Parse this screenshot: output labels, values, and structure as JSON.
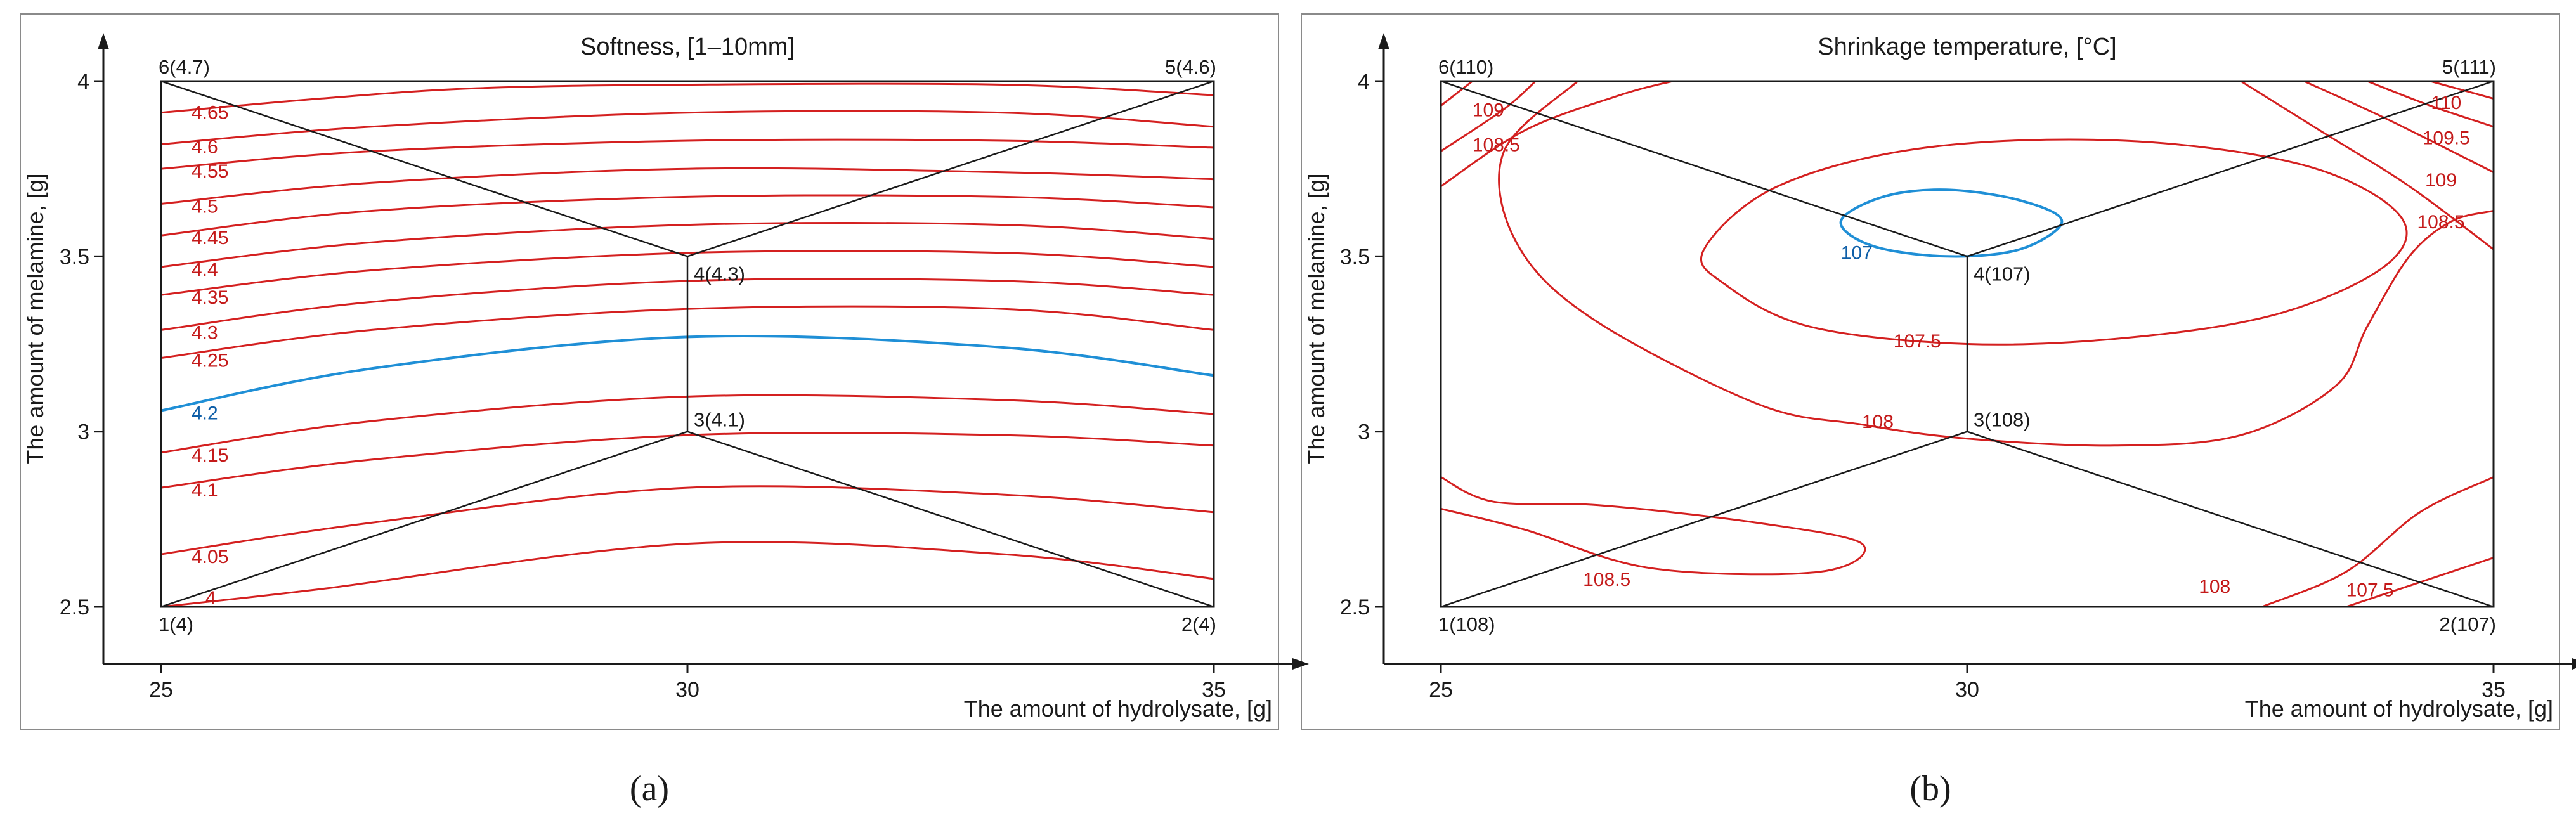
{
  "chart_data": [
    {
      "type": "contour",
      "panel_label": "(a)",
      "title": "Softness, [1–10mm]",
      "xlabel": "The amount of hydrolysate, [g]",
      "ylabel": "The amount of melamine, [g]",
      "xlim": [
        25,
        35
      ],
      "ylim": [
        2.5,
        4
      ],
      "x_ticks": [
        "25",
        "30",
        "35"
      ],
      "y_ticks": [
        "2.5",
        "3",
        "3.5",
        "4"
      ],
      "design_points": [
        {
          "label": "1(4)",
          "x": 25,
          "y": 2.5
        },
        {
          "label": "2(4)",
          "x": 35,
          "y": 2.5
        },
        {
          "label": "3(4.1)",
          "x": 30,
          "y": 3.0
        },
        {
          "label": "4(4.3)",
          "x": 30,
          "y": 3.5
        },
        {
          "label": "5(4.6)",
          "x": 35,
          "y": 4.0
        },
        {
          "label": "6(4.7)",
          "x": 25,
          "y": 4.0
        }
      ],
      "contours": [
        {
          "label": "4",
          "points": [
            [
              25,
              2.5
            ],
            [
              26.5,
              2.55
            ],
            [
              30,
              2.68
            ],
            [
              33,
              2.65
            ],
            [
              35,
              2.58
            ]
          ]
        },
        {
          "label": "4.05",
          "points": [
            [
              25,
              2.65
            ],
            [
              27,
              2.74
            ],
            [
              30,
              2.84
            ],
            [
              33,
              2.82
            ],
            [
              35,
              2.77
            ]
          ]
        },
        {
          "label": "4.1",
          "points": [
            [
              25,
              2.84
            ],
            [
              27,
              2.92
            ],
            [
              30,
              2.99
            ],
            [
              33,
              2.99
            ],
            [
              35,
              2.96
            ]
          ]
        },
        {
          "label": "4.15",
          "points": [
            [
              25,
              2.94
            ],
            [
              27,
              3.03
            ],
            [
              30,
              3.1
            ],
            [
              33,
              3.09
            ],
            [
              35,
              3.05
            ]
          ]
        },
        {
          "label": "4.2",
          "highlight": true,
          "points": [
            [
              25,
              3.06
            ],
            [
              27,
              3.18
            ],
            [
              30,
              3.27
            ],
            [
              33,
              3.24
            ],
            [
              35,
              3.16
            ]
          ]
        },
        {
          "label": "4.25",
          "points": [
            [
              25,
              3.21
            ],
            [
              27,
              3.29
            ],
            [
              30,
              3.35
            ],
            [
              33,
              3.35
            ],
            [
              35,
              3.29
            ]
          ]
        },
        {
          "label": "4.3",
          "points": [
            [
              25,
              3.29
            ],
            [
              27,
              3.37
            ],
            [
              30,
              3.43
            ],
            [
              33,
              3.43
            ],
            [
              35,
              3.39
            ]
          ]
        },
        {
          "label": "4.35",
          "points": [
            [
              25,
              3.39
            ],
            [
              27,
              3.46
            ],
            [
              30,
              3.51
            ],
            [
              33,
              3.51
            ],
            [
              35,
              3.47
            ]
          ]
        },
        {
          "label": "4.4",
          "points": [
            [
              25,
              3.47
            ],
            [
              27,
              3.54
            ],
            [
              30,
              3.59
            ],
            [
              33,
              3.59
            ],
            [
              35,
              3.55
            ]
          ]
        },
        {
          "label": "4.45",
          "points": [
            [
              25,
              3.56
            ],
            [
              27,
              3.63
            ],
            [
              30,
              3.67
            ],
            [
              33,
              3.67
            ],
            [
              35,
              3.64
            ]
          ]
        },
        {
          "label": "4.5",
          "points": [
            [
              25,
              3.65
            ],
            [
              27,
              3.71
            ],
            [
              30,
              3.75
            ],
            [
              33,
              3.74
            ],
            [
              35,
              3.72
            ]
          ]
        },
        {
          "label": "4.55",
          "points": [
            [
              25,
              3.75
            ],
            [
              27,
              3.8
            ],
            [
              30,
              3.83
            ],
            [
              33,
              3.83
            ],
            [
              35,
              3.81
            ]
          ]
        },
        {
          "label": "4.6",
          "points": [
            [
              25,
              3.82
            ],
            [
              27,
              3.87
            ],
            [
              30,
              3.91
            ],
            [
              33,
              3.91
            ],
            [
              35,
              3.87
            ]
          ]
        },
        {
          "label": "4.65",
          "points": [
            [
              25,
              3.91
            ],
            [
              26.5,
              3.95
            ],
            [
              28,
              3.98
            ],
            [
              30,
              3.99
            ],
            [
              33,
              3.99
            ],
            [
              35,
              3.96
            ]
          ]
        },
        {
          "label": "",
          "points": [
            [
              27.3,
              4.0
            ],
            [
              29.5,
              4.0
            ]
          ]
        }
      ]
    },
    {
      "type": "contour",
      "panel_label": "(b)",
      "title": "Shrinkage temperature, [°C]",
      "xlabel": "The amount of hydrolysate, [g]",
      "ylabel": "The amount of melamine, [g]",
      "xlim": [
        25,
        35
      ],
      "ylim": [
        2.5,
        4
      ],
      "x_ticks": [
        "25",
        "30",
        "35"
      ],
      "y_ticks": [
        "2.5",
        "3",
        "3.5",
        "4"
      ],
      "design_points": [
        {
          "label": "1(108)",
          "x": 25,
          "y": 2.5
        },
        {
          "label": "2(107)",
          "x": 35,
          "y": 2.5
        },
        {
          "label": "3(108)",
          "x": 30,
          "y": 3.0
        },
        {
          "label": "4(107)",
          "x": 30,
          "y": 3.5
        },
        {
          "label": "5(111)",
          "x": 35,
          "y": 4.0
        },
        {
          "label": "6(110)",
          "x": 25,
          "y": 4.0
        }
      ],
      "contours": [
        {
          "label": "107",
          "highlight": true,
          "closed": true,
          "points": [
            [
              28.8,
              3.6
            ],
            [
              29.2,
              3.67
            ],
            [
              29.8,
              3.69
            ],
            [
              30.5,
              3.66
            ],
            [
              30.9,
              3.6
            ],
            [
              30.5,
              3.52
            ],
            [
              29.8,
              3.5
            ],
            [
              29.1,
              3.53
            ]
          ]
        },
        {
          "label": "107.5",
          "closed": true,
          "points": [
            [
              27.5,
              3.52
            ],
            [
              28.2,
              3.7
            ],
            [
              29.6,
              3.81
            ],
            [
              31.5,
              3.83
            ],
            [
              33.2,
              3.76
            ],
            [
              34.1,
              3.62
            ],
            [
              34.0,
              3.48
            ],
            [
              33.0,
              3.34
            ],
            [
              31.6,
              3.27
            ],
            [
              30.0,
              3.25
            ],
            [
              28.5,
              3.3
            ],
            [
              27.7,
              3.42
            ]
          ]
        },
        {
          "label": "108",
          "points": [
            [
              25,
              3.7
            ],
            [
              25.8,
              3.86
            ],
            [
              26.7,
              3.96
            ],
            [
              27.2,
              4.0
            ]
          ]
        },
        {
          "label": "",
          "points": [
            [
              26.3,
              4.0
            ],
            [
              25.6,
              3.8
            ],
            [
              25.7,
              3.55
            ],
            [
              26.4,
              3.33
            ],
            [
              28.0,
              3.08
            ],
            [
              29.0,
              3.02
            ],
            [
              30.0,
              2.98
            ],
            [
              31.4,
              2.96
            ],
            [
              32.6,
              2.99
            ],
            [
              33.5,
              3.13
            ],
            [
              33.8,
              3.3
            ],
            [
              34.2,
              3.5
            ],
            [
              34.6,
              3.6
            ],
            [
              35,
              3.63
            ]
          ]
        },
        {
          "label": "108.5",
          "points": [
            [
              25,
              2.87
            ],
            [
              25.5,
              2.8
            ],
            [
              26.5,
              2.79
            ],
            [
              28.0,
              2.74
            ],
            [
              29.0,
              2.68
            ],
            [
              28.6,
              2.6
            ],
            [
              27.0,
              2.61
            ],
            [
              25.8,
              2.72
            ],
            [
              25,
              2.78
            ]
          ]
        },
        {
          "label": "108.5",
          "points": [
            [
              25,
              3.8
            ],
            [
              25.6,
              3.92
            ],
            [
              25.9,
              4.0
            ]
          ]
        },
        {
          "label": "109",
          "points": [
            [
              25,
              3.93
            ],
            [
              25.3,
              4.0
            ]
          ]
        },
        {
          "label": "108",
          "points": [
            [
              32.8,
              2.5
            ],
            [
              33.6,
              2.6
            ],
            [
              34.3,
              2.77
            ],
            [
              35,
              2.87
            ]
          ]
        },
        {
          "label": "107.5",
          "points": [
            [
              33.6,
              2.5
            ],
            [
              34.2,
              2.56
            ],
            [
              35,
              2.64
            ]
          ]
        },
        {
          "label": "108.5",
          "points": [
            [
              32.6,
              4.0
            ],
            [
              33.4,
              3.85
            ],
            [
              34.2,
              3.7
            ],
            [
              35,
              3.52
            ]
          ]
        },
        {
          "label": "109",
          "points": [
            [
              33.2,
              4.0
            ],
            [
              34.0,
              3.89
            ],
            [
              35,
              3.74
            ]
          ]
        },
        {
          "label": "109.5",
          "points": [
            [
              33.8,
              4.0
            ],
            [
              34.4,
              3.93
            ],
            [
              35,
              3.87
            ]
          ]
        },
        {
          "label": "110",
          "points": [
            [
              34.4,
              4.0
            ],
            [
              35,
              3.95
            ]
          ]
        }
      ]
    }
  ]
}
